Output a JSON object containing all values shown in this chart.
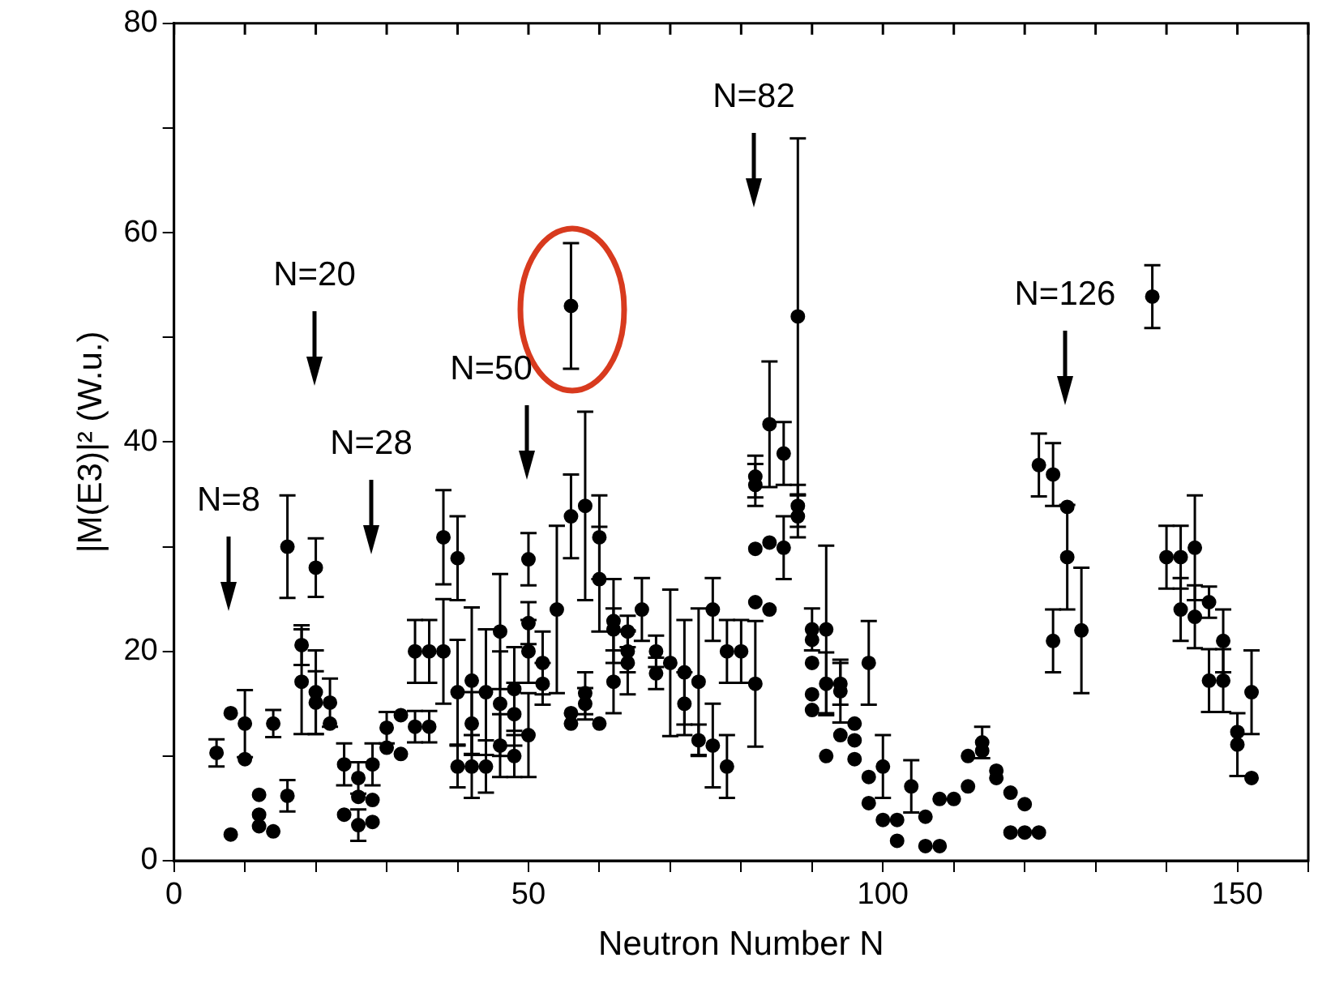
{
  "chart_data": {
    "type": "scatter",
    "xlabel": "Neutron Number N",
    "ylabel": "|M(E3)|² (W.u.)",
    "xlim": [
      0,
      160
    ],
    "ylim": [
      0,
      80
    ],
    "xticks": [
      0,
      {
        "value": 10,
        "label": null
      },
      {
        "value": 20,
        "label": null
      },
      {
        "value": 30,
        "label": null
      },
      {
        "value": 40,
        "label": null
      },
      50,
      {
        "value": 60,
        "label": null
      },
      {
        "value": 70,
        "label": null
      },
      {
        "value": 80,
        "label": null
      },
      {
        "value": 90,
        "label": null
      },
      100,
      {
        "value": 110,
        "label": null
      },
      {
        "value": 120,
        "label": null
      },
      {
        "value": 130,
        "label": null
      },
      {
        "value": 140,
        "label": null
      },
      150,
      {
        "value": 160,
        "label": null
      }
    ],
    "yticks": [
      0,
      {
        "value": 10,
        "label": null
      },
      20,
      {
        "value": 30,
        "label": null
      },
      40,
      {
        "value": 50,
        "label": null
      },
      60,
      {
        "value": 70,
        "label": null
      },
      80
    ],
    "grid": false,
    "legend": false,
    "marker": "circle",
    "annotations": [
      "N=8",
      "N=20",
      "N=28",
      "N=50",
      "N=82",
      "N=126"
    ],
    "series": [
      {
        "color": "#000000",
        "x": [
          6,
          8,
          8,
          10,
          10,
          12,
          12,
          12,
          14,
          14,
          16,
          16,
          18,
          18,
          20,
          20,
          20,
          22,
          22,
          24,
          24,
          26,
          26,
          26,
          28,
          28,
          28,
          30,
          30,
          32,
          32,
          34,
          34,
          36,
          36,
          38,
          38,
          40,
          40,
          40,
          42,
          42,
          42,
          44,
          44,
          46,
          46,
          46,
          48,
          48,
          48,
          50,
          50,
          50,
          50,
          52,
          52,
          54,
          56,
          56,
          56,
          56,
          58,
          58,
          58,
          60,
          60,
          60,
          62,
          62,
          62,
          64,
          64,
          64,
          66,
          68,
          68,
          70,
          72,
          72,
          74,
          74,
          76,
          76,
          78,
          78,
          80,
          82,
          82,
          82,
          82,
          82,
          84,
          84,
          84,
          86,
          86,
          88,
          88,
          88,
          90,
          90,
          90,
          90,
          90,
          92,
          92,
          92,
          94,
          94,
          94,
          96,
          96,
          96,
          98,
          98,
          98,
          100,
          100,
          102,
          102,
          104,
          106,
          106,
          108,
          108,
          110,
          112,
          112,
          114,
          114,
          116,
          116,
          118,
          120,
          118,
          120,
          122,
          122,
          124,
          124,
          126,
          126,
          128,
          138,
          140,
          142,
          142,
          144,
          144,
          146,
          146,
          148,
          148,
          150,
          150,
          152,
          152
        ],
        "values": [
          10.3,
          2.5,
          14.1,
          13.1,
          9.7,
          6.3,
          4.4,
          3.3,
          2.8,
          13.1,
          30,
          6.2,
          20.6,
          17.1,
          28,
          16.1,
          15.1,
          15.1,
          13.1,
          9.2,
          4.4,
          7.9,
          6.1,
          3.4,
          9.2,
          5.8,
          3.7,
          12.7,
          10.8,
          13.9,
          10.2,
          20,
          12.8,
          20,
          12.8,
          30.9,
          20,
          28.9,
          16.1,
          9,
          17.2,
          13.1,
          9,
          16.1,
          9,
          21.9,
          15,
          11,
          16.4,
          14,
          10,
          28.8,
          22.7,
          20,
          12,
          18.9,
          16.9,
          24,
          53,
          32.9,
          14.1,
          13.1,
          33.9,
          16,
          15,
          30.9,
          26.9,
          13.1,
          22.9,
          22.1,
          17.1,
          21.9,
          20,
          18.9,
          24,
          20,
          17.9,
          18.9,
          18,
          15,
          17.1,
          11.5,
          24,
          11,
          20,
          9,
          20,
          36.7,
          35.9,
          29.8,
          24.7,
          16.9,
          41.7,
          30.4,
          24,
          38.9,
          29.9,
          52,
          33.9,
          32.9,
          22.1,
          21.1,
          18.9,
          15.9,
          14.4,
          22.1,
          16.9,
          10,
          16.9,
          16.2,
          12,
          13.1,
          11.5,
          9.7,
          18.9,
          8,
          5.5,
          9,
          3.9,
          3.9,
          1.9,
          7.1,
          4.2,
          1.4,
          1.4,
          5.9,
          5.9,
          7.1,
          10,
          11.3,
          10.5,
          8.6,
          7.9,
          6.5,
          5.4,
          2.7,
          2.7,
          2.7,
          37.8,
          36.9,
          21,
          33.8,
          29,
          22,
          53.9,
          29,
          29,
          24,
          29.9,
          23.3,
          24.7,
          17.2,
          21,
          17.2,
          12.3,
          11.1,
          16.1,
          7.9
        ],
        "errors": [
          1.3,
          null,
          null,
          3.2,
          null,
          null,
          null,
          null,
          null,
          1.3,
          4.9,
          1.5,
          1.9,
          5,
          2.8,
          4,
          3,
          2.3,
          null,
          2,
          null,
          1.5,
          null,
          1.5,
          2,
          null,
          null,
          1.5,
          null,
          null,
          null,
          3,
          1.5,
          3,
          1.5,
          4.5,
          5,
          4,
          5,
          2,
          7,
          3,
          3,
          6,
          2.5,
          5.5,
          5,
          3,
          4,
          3,
          2,
          2.5,
          2,
          3,
          4,
          3,
          2,
          8,
          6,
          4,
          null,
          null,
          9,
          2,
          1.5,
          4,
          5,
          null,
          4,
          2,
          3,
          1.5,
          2,
          3,
          3,
          1.5,
          1.5,
          7,
          5,
          3,
          7,
          1.5,
          3,
          4,
          3,
          3,
          3,
          2,
          2,
          null,
          null,
          6,
          6,
          null,
          null,
          3,
          3,
          17,
          2,
          2,
          2,
          null,
          null,
          null,
          null,
          8,
          3,
          null,
          2,
          3,
          null,
          null,
          null,
          null,
          4,
          null,
          null,
          3,
          null,
          null,
          null,
          2.5,
          null,
          null,
          null,
          null,
          null,
          null,
          null,
          1.5,
          null,
          null,
          null,
          null,
          null,
          null,
          null,
          null,
          3,
          3,
          3,
          null,
          5,
          6,
          3,
          3,
          3,
          3,
          5,
          3,
          1.5,
          3,
          3,
          3,
          null,
          3,
          4,
          null
        ]
      }
    ]
  }
}
